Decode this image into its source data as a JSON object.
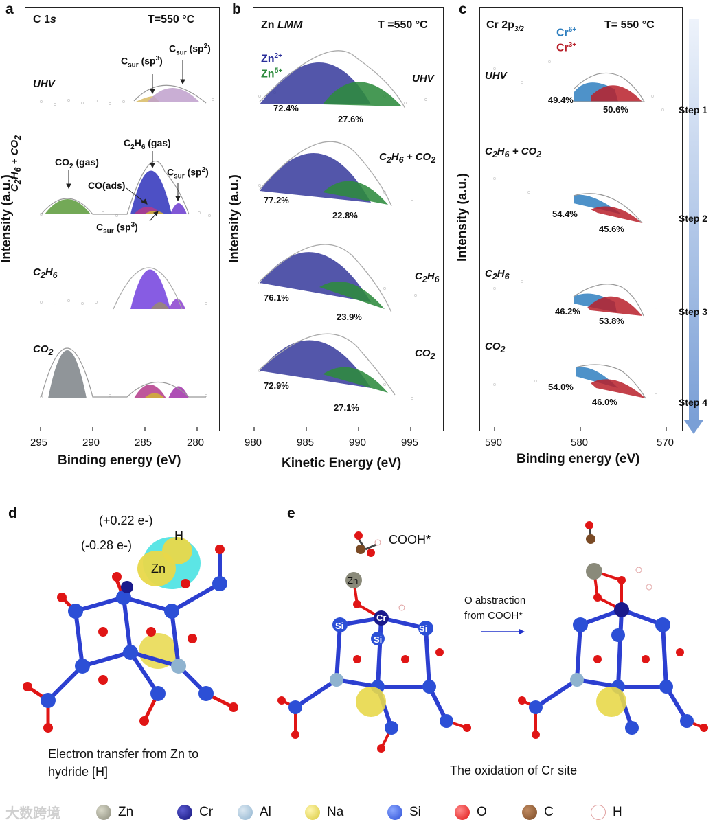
{
  "panels": {
    "a": {
      "letter": "a",
      "title_main": "C 1",
      "title_it": "s",
      "temp": "T=550 °C",
      "ylabel": "Intensity (a.u.)",
      "xlabel": "Binding energy (eV)",
      "ticks": [
        "295",
        "290",
        "285",
        "280"
      ],
      "conditions": [
        "UHV",
        "C2H6 + CO2",
        "C2H6",
        "CO2"
      ],
      "annotations": {
        "csur_sp3": "Csur (sp3)",
        "csur_sp2": "Csur (sp2)",
        "co2_gas": "CO2 (gas)",
        "c2h6_gas": "C2H6 (gas)",
        "co_ads": "CO(ads)",
        "csur_sp2_b": "Csur (sp2)",
        "csur_sp3_b": "Csur (sp3)"
      }
    },
    "b": {
      "letter": "b",
      "title_main": "Zn",
      "title_it": "LMM",
      "temp": "T =550 °C",
      "ylabel": "Intensity (a.u.)",
      "xlabel": "Kinetic Energy (eV)",
      "ticks": [
        "980",
        "985",
        "990",
        "995"
      ],
      "legend": [
        "Zn2+",
        "Znδ+"
      ],
      "conditions": [
        "UHV",
        "C2H6 + CO2",
        "C2H6",
        "CO2"
      ],
      "percent_left": [
        "72.4%",
        "77.2%",
        "76.1%",
        "72.9%"
      ],
      "percent_right": [
        "27.6%",
        "22.8%",
        "23.9%",
        "27.1%"
      ]
    },
    "c": {
      "letter": "c",
      "title_main": "Cr 2p",
      "title_sub": "3/2",
      "temp": "T= 550 °C",
      "ylabel": "Intensity (a.u.)",
      "xlabel": "Binding energy (eV)",
      "ticks": [
        "590",
        "580",
        "570"
      ],
      "legend": [
        "Cr6+",
        "Cr3+"
      ],
      "conditions": [
        "UHV",
        "C2H6 + CO2",
        "C2H6",
        "CO2"
      ],
      "percent_left": [
        "49.4%",
        "54.4%",
        "46.2%",
        "54.0%"
      ],
      "percent_right": [
        "50.6%",
        "45.6%",
        "53.8%",
        "46.0%"
      ],
      "steps": [
        "Step 1",
        "Step 2",
        "Step 3",
        "Step 4"
      ]
    },
    "d": {
      "letter": "d",
      "charge_h": "(+0.22 e-)",
      "charge_zn": "(-0.28 e-)",
      "label_zn": "Zn",
      "label_h": "H",
      "caption_line1": "Electron transfer from Zn to",
      "caption_line2": "hydride [H]"
    },
    "e": {
      "letter": "e",
      "cooh": "COOH*",
      "arrow_line1": "O abstraction",
      "arrow_line2": "from COOH*",
      "caption": "The oxidation of Cr site",
      "atom_labels": [
        "Zn",
        "Cr",
        "Si",
        "Si",
        "Si"
      ]
    }
  },
  "legend": [
    {
      "label": "Zn",
      "color": "#8a8a7a"
    },
    {
      "label": "Cr",
      "color": "#1a1a8c"
    },
    {
      "label": "Al",
      "color": "#8fb3cf"
    },
    {
      "label": "Na",
      "color": "#d8c83a"
    },
    {
      "label": "Si",
      "color": "#2c4fd6"
    },
    {
      "label": "O",
      "color": "#e01515"
    },
    {
      "label": "C",
      "color": "#7a4a25"
    },
    {
      "label": "H",
      "color": "#ffffff"
    }
  ],
  "watermark": "大数跨境",
  "colors": {
    "zn2": "#3b3f9e",
    "zndelta": "#2e8b3e",
    "cr6": "#2f7fbf",
    "cr3": "#b8202a",
    "peak_blue": "#3a3dbf",
    "peak_green": "#5a9a3a",
    "peak_gray": "#8a8f94"
  }
}
